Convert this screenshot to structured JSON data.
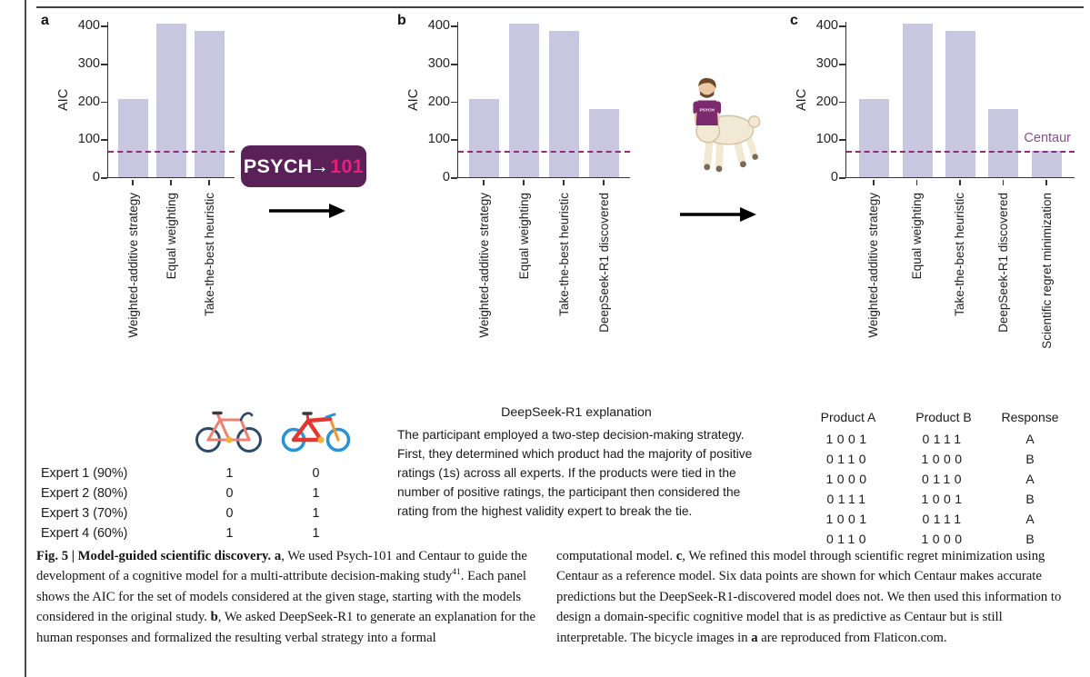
{
  "figure": {
    "panels": [
      {
        "label": "a"
      },
      {
        "label": "b"
      },
      {
        "label": "c"
      }
    ],
    "logo": {
      "text_main": "PSYCH",
      "arrow": "→",
      "text_number": "101",
      "bg_color": "#5a2158",
      "main_color": "#ffffff",
      "number_color": "#ec1e79"
    },
    "colors": {
      "bar": "#c9c7e0",
      "dashed_line": "#8e2b7e",
      "centaur_label": "#8a4c99",
      "axis": "#333333"
    }
  },
  "chart_data": [
    {
      "type": "bar",
      "panel": "a",
      "ylabel": "AIC",
      "categories": [
        "Weighted-additive strategy",
        "Equal weighting",
        "Take-the-best heuristic"
      ],
      "values": [
        205,
        405,
        385
      ],
      "ylim": [
        0,
        412
      ],
      "yticks": [
        0,
        100,
        200,
        300,
        400
      ],
      "dashed_line_y": 72,
      "bar_color": "#c9c7e0",
      "grid": false
    },
    {
      "type": "bar",
      "panel": "b",
      "ylabel": "AIC",
      "categories": [
        "Weighted-additive strategy",
        "Equal weighting",
        "Take-the-best heuristic",
        "DeepSeek-R1 discovered"
      ],
      "values": [
        205,
        405,
        385,
        180
      ],
      "ylim": [
        0,
        412
      ],
      "yticks": [
        0,
        100,
        200,
        300,
        400
      ],
      "dashed_line_y": 72,
      "bar_color": "#c9c7e0",
      "grid": false
    },
    {
      "type": "bar",
      "panel": "c",
      "ylabel": "AIC",
      "categories": [
        "Weighted-additive strategy",
        "Equal weighting",
        "Take-the-best heuristic",
        "DeepSeek-R1 discovered",
        "Scientific regret minimization"
      ],
      "values": [
        205,
        405,
        385,
        180,
        70
      ],
      "ylim": [
        0,
        412
      ],
      "yticks": [
        0,
        100,
        200,
        300,
        400
      ],
      "dashed_line_y": 72,
      "bar_color": "#c9c7e0",
      "grid": false,
      "annotation": {
        "text": "Centaur",
        "color": "#8a4c99"
      }
    }
  ],
  "expert_table": {
    "rows": [
      {
        "label": "Expert 1 (90%)",
        "bike_a": "1",
        "bike_b": "0"
      },
      {
        "label": "Expert 2 (80%)",
        "bike_a": "0",
        "bike_b": "1"
      },
      {
        "label": "Expert 3 (70%)",
        "bike_a": "0",
        "bike_b": "1"
      },
      {
        "label": "Expert 4 (60%)",
        "bike_a": "1",
        "bike_b": "1"
      }
    ]
  },
  "explanation": {
    "title": "DeepSeek-R1 explanation",
    "body": "The participant employed a two-step decision-making strategy. First, they determined which product had the majority of positive ratings (1s) across all experts. If the products were tied in the number of positive ratings, the participant then considered the rating from the highest validity expert to break the tie."
  },
  "product_table": {
    "headers": [
      "Product A",
      "Product B",
      "Response"
    ],
    "rows": [
      [
        "1001",
        "0111",
        "A"
      ],
      [
        "0110",
        "1000",
        "B"
      ],
      [
        "1000",
        "0110",
        "A"
      ],
      [
        "0111",
        "1001",
        "B"
      ],
      [
        "1001",
        "0111",
        "A"
      ],
      [
        "0110",
        "1000",
        "B"
      ]
    ]
  },
  "caption": {
    "left_segments": [
      {
        "t": "Fig. 5 | Model-guided scientific discovery. ",
        "s": "b"
      },
      {
        "t": "a",
        "s": "b"
      },
      {
        "t": ", We used Psych-101 and Centaur to guide the development of a cognitive model for a multi-attribute decision-making study",
        "s": "n"
      },
      {
        "t": "41",
        "s": "sup"
      },
      {
        "t": ". Each panel shows the AIC for the set of models considered at the given stage, starting with the models considered in the original study. ",
        "s": "n"
      },
      {
        "t": "b",
        "s": "b"
      },
      {
        "t": ", We asked DeepSeek-R1 to generate an explanation for the human responses and formalized the resulting verbal strategy into a formal",
        "s": "n"
      }
    ],
    "right_segments": [
      {
        "t": "computational model. ",
        "s": "n"
      },
      {
        "t": "c",
        "s": "b"
      },
      {
        "t": ", We refined this model through scientific regret minimization using Centaur as a reference model. Six data points are shown for which Centaur makes accurate predictions but the DeepSeek-R1-discovered model does not. We then used this information to design a domain-specific cognitive model that is as predictive as Centaur but is still interpretable. The bicycle images in ",
        "s": "n"
      },
      {
        "t": "a",
        "s": "b"
      },
      {
        "t": " are reproduced from Flaticon.com.",
        "s": "n"
      }
    ]
  }
}
